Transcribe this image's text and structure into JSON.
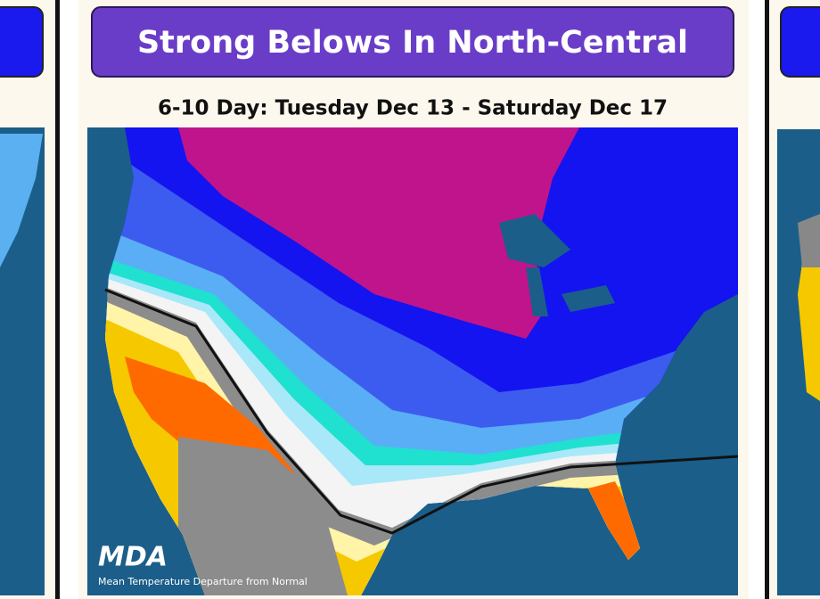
{
  "slide": {
    "title": "Strong Belows In North-Central",
    "subtitle": "6-10 Day: Tuesday Dec 13 - Saturday Dec 17",
    "map": {
      "logo": "MDA",
      "caption": "Mean Temperature Departure from Normal"
    }
  }
}
